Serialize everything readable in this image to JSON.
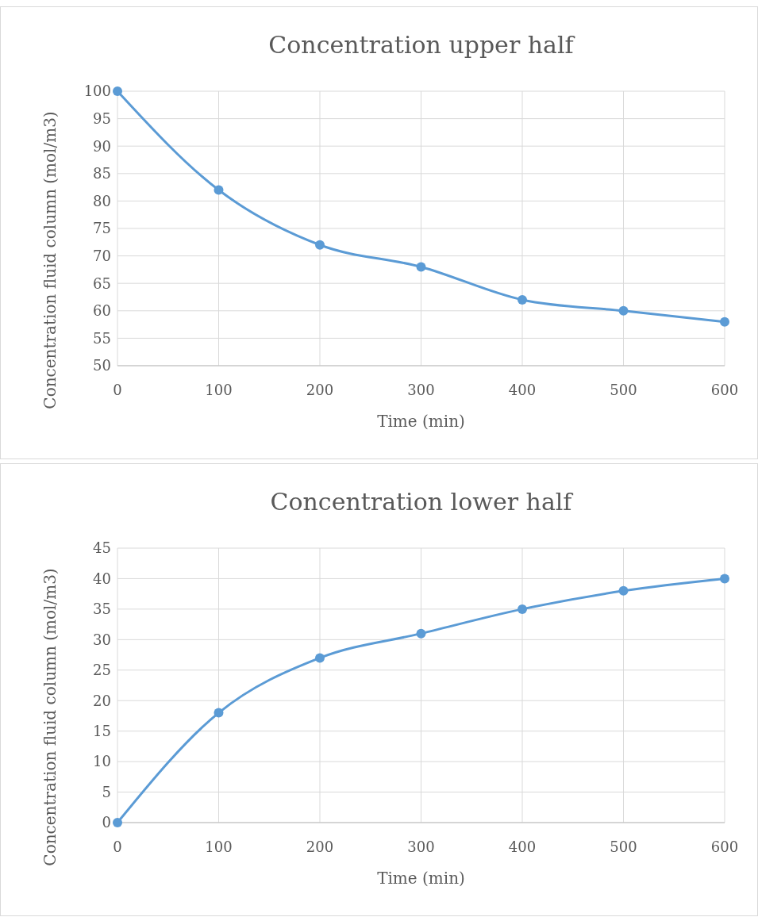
{
  "chart_data": [
    {
      "type": "line",
      "title": "Concentration upper half",
      "xlabel": "Time (min)",
      "ylabel": "Concentration fluid column (mol/m3)",
      "x": [
        0,
        100,
        200,
        300,
        400,
        500,
        600
      ],
      "series": [
        {
          "color": "#5b9bd5",
          "values": [
            100,
            82,
            72,
            68,
            62,
            60,
            58
          ]
        }
      ],
      "xlim": [
        0,
        600
      ],
      "xticks": [
        0,
        100,
        200,
        300,
        400,
        500,
        600
      ],
      "ylim": [
        50,
        100
      ],
      "yticks": [
        50,
        55,
        60,
        65,
        70,
        75,
        80,
        85,
        90,
        95,
        100
      ],
      "grid": true,
      "marker": "circle",
      "line_style": "solid"
    },
    {
      "type": "line",
      "title": "Concentration lower half",
      "xlabel": "Time (min)",
      "ylabel": "Concentration fluid column (mol/m3)",
      "x": [
        0,
        100,
        200,
        300,
        400,
        500,
        600
      ],
      "series": [
        {
          "color": "#5b9bd5",
          "values": [
            0,
            18,
            27,
            31,
            35,
            38,
            40
          ]
        }
      ],
      "xlim": [
        0,
        600
      ],
      "xticks": [
        0,
        100,
        200,
        300,
        400,
        500,
        600
      ],
      "ylim": [
        0,
        45
      ],
      "yticks": [
        0,
        5,
        10,
        15,
        20,
        25,
        30,
        35,
        40,
        45
      ],
      "grid": true,
      "marker": "circle",
      "line_style": "solid"
    }
  ]
}
